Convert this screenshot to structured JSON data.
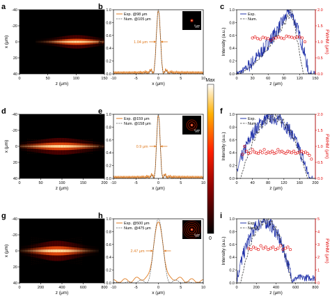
{
  "colorbar": {
    "max_label": "Max",
    "min_label": "0"
  },
  "chart_data": [
    {
      "panel": "a",
      "type": "heatmap",
      "xlabel": "z (μm)",
      "ylabel": "x (μm)",
      "xlim": [
        0,
        150
      ],
      "ylim": [
        -40,
        40
      ],
      "xticks": [
        "0",
        "50",
        "100",
        "150"
      ],
      "yticks": [
        "40",
        "20",
        "0",
        "-20",
        "-40"
      ],
      "beam": {
        "center_z": 100,
        "spread_z": 40,
        "half_width_x": 2
      }
    },
    {
      "panel": "b",
      "type": "line",
      "xlabel": "x (μm)",
      "ylabel": "Intensity (a.u.)",
      "xlim": [
        -10,
        10
      ],
      "ylim": [
        0,
        1.0
      ],
      "xticks": [
        "-10",
        "-5",
        "0",
        "5",
        "10"
      ],
      "yticks": [
        "0.0",
        "0.2",
        "0.4",
        "0.6",
        "0.8",
        "1.0"
      ],
      "series": [
        {
          "name": "Exp. @98 μm",
          "style": "solid",
          "color": "#e07b20"
        },
        {
          "name": "Num. @105 μm",
          "style": "dashed",
          "color": "#555555"
        }
      ],
      "width_annotation": "1.04 μm",
      "fwhm": 1.04,
      "ring_count": 0,
      "inset_scale": "5 μm"
    },
    {
      "panel": "c",
      "type": "line",
      "xlabel": "z (μm)",
      "ylabel": "Intensity (a.u.)",
      "y2label": "FWHM (μm)",
      "xlim": [
        0,
        150
      ],
      "ylim": [
        0,
        1.0
      ],
      "y2lim": [
        0,
        2.0
      ],
      "xticks": [
        "0",
        "30",
        "60",
        "90",
        "120",
        "150"
      ],
      "yticks": [
        "0.0",
        "0.2",
        "0.4",
        "0.6",
        "0.8",
        "1.0"
      ],
      "y2ticks": [
        "0.0",
        "0.5",
        "1.0",
        "1.5",
        "2.0"
      ],
      "series": [
        {
          "name": "Exp.",
          "style": "solid",
          "color": "#2233aa"
        },
        {
          "name": "Num.",
          "style": "dashed",
          "color": "#333333"
        }
      ],
      "fwhm_z": [
        30,
        35,
        40,
        45,
        50,
        55,
        60,
        65,
        70,
        75,
        80,
        85,
        90,
        95,
        100,
        105,
        110,
        115,
        120,
        125,
        130
      ],
      "fwhm": [
        1.12,
        1.15,
        1.1,
        1.08,
        1.14,
        1.12,
        1.1,
        1.05,
        1.1,
        1.12,
        1.15,
        1.12,
        1.1,
        1.18,
        1.16,
        1.14,
        1.12,
        1.15,
        1.15,
        1.12,
        1.0
      ]
    },
    {
      "panel": "d",
      "type": "heatmap",
      "xlabel": "z (μm)",
      "ylabel": "x (μm)",
      "xlim": [
        0,
        200
      ],
      "ylim": [
        -40,
        40
      ],
      "xticks": [
        "0",
        "50",
        "100",
        "150",
        "200"
      ],
      "yticks": [
        "40",
        "20",
        "0",
        "-20",
        "-40"
      ],
      "beam": {
        "center_z": 95,
        "spread_z": 70,
        "half_width_x": 2.5
      }
    },
    {
      "panel": "e",
      "type": "line",
      "xlabel": "x (μm)",
      "ylabel": "Intensity (a.u.)",
      "xlim": [
        -10,
        10
      ],
      "ylim": [
        0,
        1.0
      ],
      "xticks": [
        "-10",
        "-5",
        "0",
        "5",
        "10"
      ],
      "yticks": [
        "0.0",
        "0.2",
        "0.4",
        "0.6",
        "0.8",
        "1.0"
      ],
      "series": [
        {
          "name": "Exp. @159 μm",
          "style": "solid",
          "color": "#e07b20"
        },
        {
          "name": "Num. @158 μm",
          "style": "dashed",
          "color": "#555555"
        }
      ],
      "width_annotation": "0.9 μm",
      "fwhm": 0.9,
      "ring_count": 2,
      "inset_scale": "5 μm"
    },
    {
      "panel": "f",
      "type": "line",
      "xlabel": "z (μm)",
      "ylabel": "Intensity (a.u.)",
      "y2label": "FWHM (μm)",
      "xlim": [
        0,
        200
      ],
      "ylim": [
        0,
        1.0
      ],
      "y2lim": [
        0,
        2.0
      ],
      "xticks": [
        "0",
        "40",
        "80",
        "120",
        "160",
        "200"
      ],
      "yticks": [
        "0.0",
        "0.2",
        "0.4",
        "0.6",
        "0.8",
        "1.0"
      ],
      "y2ticks": [
        "0.0",
        "0.5",
        "1.0",
        "1.5",
        "2.0"
      ],
      "series": [
        {
          "name": "Exp.",
          "style": "solid",
          "color": "#2233aa"
        },
        {
          "name": "Num.",
          "style": "dashed",
          "color": "#333333"
        }
      ],
      "fwhm_z": [
        15,
        20,
        25,
        30,
        35,
        40,
        45,
        50,
        55,
        60,
        65,
        70,
        75,
        80,
        85,
        90,
        95,
        100,
        105,
        110,
        115,
        120,
        125,
        130,
        135,
        140,
        145,
        150,
        155,
        160,
        165,
        170,
        175,
        180,
        185,
        190
      ],
      "fwhm": [
        0.75,
        1.0,
        0.85,
        0.78,
        0.8,
        0.9,
        0.82,
        0.8,
        0.78,
        0.85,
        0.8,
        0.9,
        0.78,
        0.82,
        0.8,
        0.85,
        0.78,
        0.8,
        0.9,
        0.82,
        0.85,
        0.8,
        0.78,
        0.85,
        0.82,
        0.8,
        0.85,
        0.78,
        0.8,
        0.82,
        0.85,
        0.8,
        0.82,
        0.78,
        0.72,
        0.6
      ]
    },
    {
      "panel": "g",
      "type": "heatmap",
      "xlabel": "z (μm)",
      "ylabel": "x (μm)",
      "xlim": [
        0,
        800
      ],
      "ylim": [
        -40,
        40
      ],
      "xticks": [
        "0",
        "200",
        "400",
        "600",
        "800"
      ],
      "yticks": [
        "40",
        "20",
        "0",
        "-20",
        "-40"
      ],
      "beam": {
        "center_z": 350,
        "spread_z": 220,
        "half_width_x": 3
      }
    },
    {
      "panel": "h",
      "type": "line",
      "xlabel": "x (μm)",
      "ylabel": "Intensity (a.u.)",
      "xlim": [
        -10,
        10
      ],
      "ylim": [
        0,
        1.0
      ],
      "xticks": [
        "-10",
        "-5",
        "0",
        "5",
        "10"
      ],
      "yticks": [
        "0.0",
        "0.2",
        "0.4",
        "0.6",
        "0.8",
        "1.0"
      ],
      "series": [
        {
          "name": "Exp. @500 μm",
          "style": "solid",
          "color": "#e07b20"
        },
        {
          "name": "Num. @475 μm",
          "style": "dashed",
          "color": "#555555"
        }
      ],
      "width_annotation": "2.47 μm",
      "fwhm": 2.47,
      "ring_count": 4,
      "inset_scale": "5 μm"
    },
    {
      "panel": "i",
      "type": "line",
      "xlabel": "z (μm)",
      "ylabel": "Intensity (a.u.)",
      "y2label": "FWHM (μm)",
      "xlim": [
        0,
        800
      ],
      "ylim": [
        0,
        1.0
      ],
      "y2lim": [
        0,
        5
      ],
      "xticks": [
        "0",
        "200",
        "400",
        "600",
        "800"
      ],
      "yticks": [
        "0.0",
        "0.2",
        "0.4",
        "0.6",
        "0.8",
        "1.0"
      ],
      "y2ticks": [
        "0",
        "1",
        "2",
        "3",
        "4",
        "5"
      ],
      "series": [
        {
          "name": "Exp.",
          "style": "solid",
          "color": "#2233aa"
        },
        {
          "name": "Num.",
          "style": "dashed",
          "color": "#333333"
        }
      ],
      "fwhm_z": [
        120,
        145,
        170,
        195,
        220,
        245,
        270,
        295,
        320,
        345,
        370,
        395,
        420,
        445,
        470,
        495,
        520,
        545
      ],
      "fwhm": [
        2.7,
        2.6,
        2.8,
        2.7,
        2.6,
        2.9,
        2.7,
        2.8,
        2.6,
        2.7,
        2.8,
        2.6,
        2.7,
        2.9,
        2.6,
        2.7,
        2.8,
        2.6
      ]
    }
  ]
}
